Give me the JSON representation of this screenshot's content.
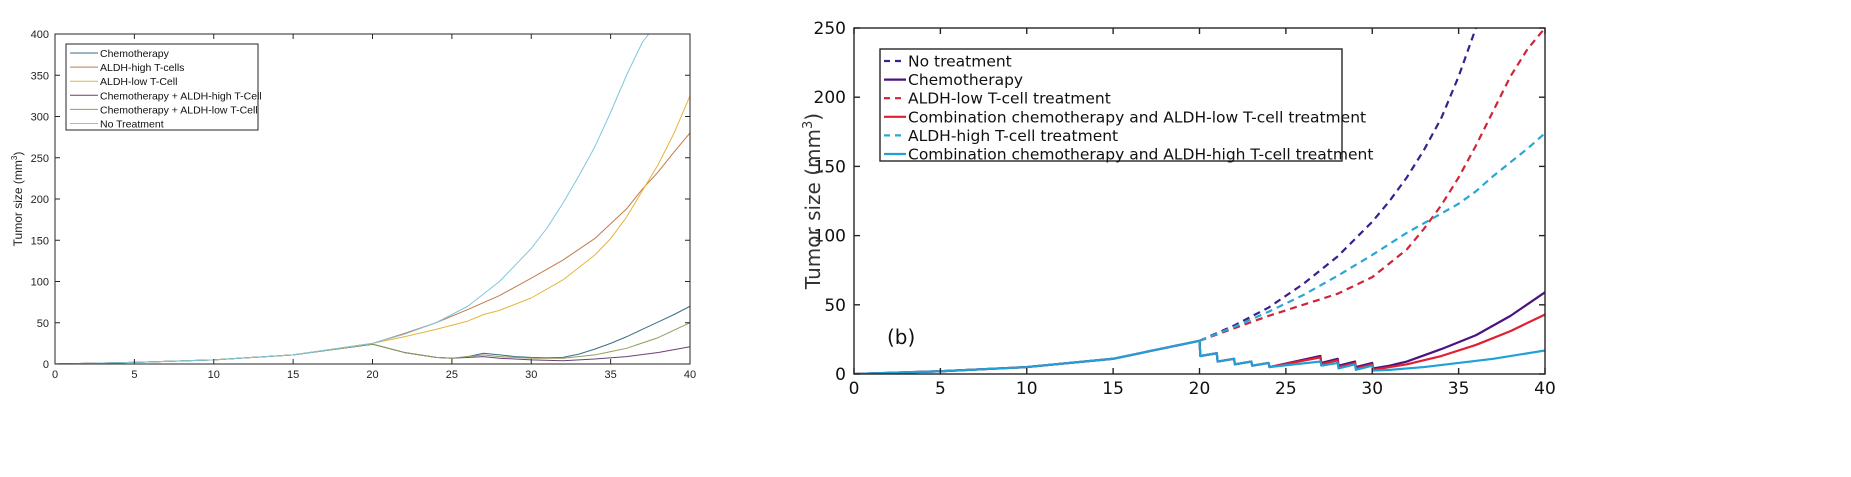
{
  "chart_data": [
    {
      "type": "line",
      "ylabel": "Tumor size (mm3)",
      "ylabel_main": "Tumor size (mm",
      "ylabel_sup": "3",
      "ylabel_close": ")",
      "xlim": [
        0,
        40
      ],
      "ylim": [
        0,
        400
      ],
      "xticks": [
        "0",
        "5",
        "10",
        "15",
        "20",
        "25",
        "30",
        "35",
        "40"
      ],
      "yticks": [
        "0",
        "50",
        "100",
        "150",
        "200",
        "250",
        "300",
        "350",
        "400"
      ],
      "grid": false,
      "legend_position": "top-left",
      "series": [
        {
          "name": "Chemotherapy",
          "color": "#3b6e86",
          "x": [
            0,
            5,
            10,
            15,
            20,
            22,
            24,
            25,
            26,
            27,
            28,
            29,
            30,
            31,
            32,
            33,
            34,
            35,
            36,
            37,
            38,
            39,
            40
          ],
          "y": [
            0,
            2,
            5,
            11,
            24,
            14,
            8,
            7,
            9,
            13,
            11,
            9,
            8,
            7.5,
            8,
            12,
            18,
            25,
            33,
            42,
            51,
            60,
            70
          ]
        },
        {
          "name": "ALDH-high T-cells",
          "color": "#c27a4a",
          "x": [
            0,
            5,
            10,
            15,
            20,
            22,
            24,
            26,
            28,
            30,
            32,
            34,
            36,
            37,
            38,
            39,
            40
          ],
          "y": [
            0,
            2,
            5,
            11,
            25,
            37,
            50,
            66,
            83,
            104,
            126,
            152,
            188,
            212,
            233,
            257,
            280
          ]
        },
        {
          "name": "ALDH-low T-Cell",
          "color": "#e3b63a",
          "x": [
            0,
            5,
            10,
            15,
            20,
            22,
            24,
            26,
            27,
            28,
            30,
            32,
            34,
            35,
            36,
            37,
            38,
            39,
            40
          ],
          "y": [
            0,
            2,
            5,
            11,
            25,
            33,
            42,
            52,
            60,
            65,
            80,
            102,
            132,
            152,
            178,
            210,
            242,
            280,
            325
          ]
        },
        {
          "name": "Chemotherapy + ALDH-high T-Cell",
          "color": "#6b3f73",
          "x": [
            0,
            5,
            10,
            15,
            20,
            22,
            24,
            25,
            27,
            28,
            30,
            32,
            34,
            36,
            38,
            40
          ],
          "y": [
            0,
            2,
            5,
            11,
            24,
            14,
            8,
            7,
            9,
            7,
            5,
            4,
            6,
            9,
            14,
            21
          ]
        },
        {
          "name": "Chemotherapy + ALDH-low T-Cell",
          "color": "#8f9e5c",
          "x": [
            0,
            5,
            10,
            15,
            20,
            22,
            24,
            25,
            27,
            28,
            30,
            32,
            34,
            35,
            36,
            38,
            40
          ],
          "y": [
            0,
            2,
            5,
            11,
            24,
            14,
            8,
            7,
            11,
            9,
            7,
            7,
            11,
            15,
            19,
            32,
            50
          ]
        },
        {
          "name": "No Treatment",
          "color": "#7fc6de",
          "x": [
            0,
            5,
            10,
            15,
            20,
            22,
            24,
            26,
            28,
            30,
            31,
            32,
            33,
            34,
            35,
            36,
            37,
            37.4
          ],
          "y": [
            0,
            2,
            5,
            11,
            25,
            36,
            50,
            70,
            100,
            140,
            165,
            195,
            228,
            263,
            305,
            350,
            390,
            400
          ]
        }
      ]
    },
    {
      "type": "line",
      "ylabel": "Tumor size (mm3)",
      "ylabel_main": "Tumor size (mm",
      "ylabel_sup": "3",
      "ylabel_close": ")",
      "panel_label": "(b)",
      "xlim": [
        0,
        40
      ],
      "ylim": [
        0,
        250
      ],
      "xticks": [
        "0",
        "5",
        "10",
        "15",
        "20",
        "25",
        "30",
        "35",
        "40"
      ],
      "yticks": [
        "0",
        "50",
        "100",
        "150",
        "200",
        "250"
      ],
      "grid": false,
      "legend_position": "top-left",
      "series": [
        {
          "name": "No treatment",
          "color": "#3d1f8c",
          "dashed": true,
          "x": [
            20,
            22,
            24,
            26,
            28,
            30,
            31,
            32,
            33,
            34,
            35,
            36
          ],
          "y": [
            24,
            35,
            48,
            65,
            85,
            110,
            125,
            142,
            162,
            185,
            215,
            250
          ]
        },
        {
          "name": "Chemotherapy",
          "color": "#4a1380",
          "dashed": false,
          "x": [
            0,
            5,
            10,
            15,
            20,
            20.05,
            21,
            21.05,
            22,
            22.05,
            23,
            23.05,
            24,
            24.05,
            27,
            27.05,
            28,
            28.05,
            29,
            29.05,
            30,
            30.05,
            31,
            32,
            34,
            36,
            38,
            40
          ],
          "y": [
            0,
            2,
            5,
            11,
            24,
            13,
            15,
            9,
            11,
            7,
            9,
            6,
            8,
            5,
            13,
            8,
            11,
            6,
            9,
            5,
            8,
            4,
            6,
            9,
            18,
            28,
            42,
            59
          ]
        },
        {
          "name": "ALDH-low T-cell treatment",
          "color": "#d02437",
          "dashed": true,
          "x": [
            20,
            22,
            24,
            26,
            28,
            30,
            32,
            33,
            34,
            35,
            36,
            37,
            38,
            39,
            40
          ],
          "y": [
            24,
            33,
            42,
            50,
            58,
            70,
            90,
            105,
            122,
            142,
            165,
            190,
            215,
            235,
            250
          ]
        },
        {
          "name": "Combination chemotherapy and ALDH-low T-cell treatment",
          "color": "#e01f30",
          "dashed": false,
          "x": [
            0,
            5,
            10,
            15,
            20,
            20.05,
            21,
            21.05,
            22,
            22.05,
            23,
            23.05,
            24,
            24.05,
            27,
            27.05,
            28,
            28.05,
            29,
            29.05,
            30,
            30.05,
            31,
            32,
            34,
            36,
            38,
            40
          ],
          "y": [
            0,
            2,
            5,
            11,
            24,
            13,
            15,
            9,
            11,
            7,
            9,
            6,
            8,
            5,
            12,
            7,
            10,
            5,
            8,
            4,
            7,
            3,
            5,
            7,
            13,
            21,
            31,
            43
          ]
        },
        {
          "name": "ALDH-high T-cell treatment",
          "color": "#28a7d6",
          "dashed": true,
          "x": [
            20,
            22,
            24,
            26,
            28,
            30,
            32,
            34,
            35,
            36,
            37,
            38,
            39,
            40
          ],
          "y": [
            24,
            34,
            45,
            57,
            71,
            86,
            102,
            116,
            123,
            132,
            143,
            153,
            163,
            174
          ]
        },
        {
          "name": "Combination chemotherapy and ALDH-high T-cell treatment",
          "color": "#1fa0d8",
          "dashed": false,
          "x": [
            0,
            5,
            10,
            15,
            20,
            20.05,
            21,
            21.05,
            22,
            22.05,
            23,
            23.05,
            24,
            24.05,
            27,
            27.05,
            28,
            28.05,
            29,
            29.05,
            30,
            30.05,
            31,
            33,
            35,
            37,
            40
          ],
          "y": [
            0,
            2,
            5,
            11,
            24,
            13,
            15,
            9,
            11,
            7,
            9,
            6,
            8,
            5,
            9,
            6,
            8,
            4,
            7,
            3,
            6,
            2.5,
            3,
            5,
            8,
            11,
            17
          ]
        }
      ]
    }
  ]
}
